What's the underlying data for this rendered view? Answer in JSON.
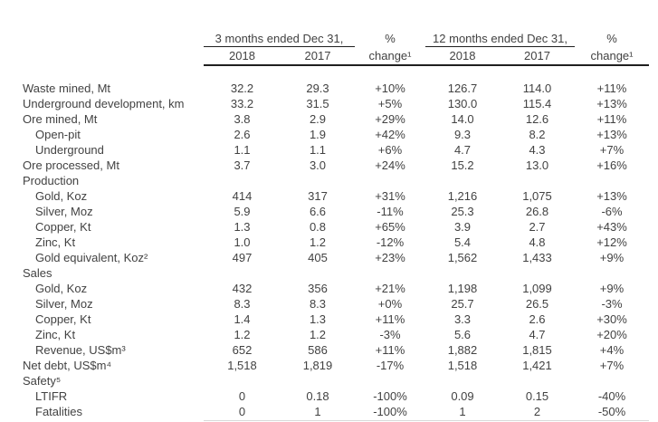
{
  "colors": {
    "text": "#424242",
    "rule_strong": "#1f1f1f",
    "rule_light": "#d9d9d9",
    "background": "#ffffff"
  },
  "table": {
    "header": {
      "group_3m": {
        "title": "3 months ended Dec 31,",
        "years": [
          "2018",
          "2017"
        ]
      },
      "group_12m": {
        "title": "12 months ended Dec 31,",
        "years": [
          "2018",
          "2017"
        ]
      },
      "pct_change": {
        "line1": "%",
        "line2": "change¹"
      }
    },
    "rows": [
      {
        "label": "Waste mined, Mt",
        "indent": false,
        "values": [
          "32.2",
          "29.3",
          "+10%",
          "126.7",
          "114.0",
          "+11%"
        ]
      },
      {
        "label": "Underground development, km",
        "indent": false,
        "values": [
          "33.2",
          "31.5",
          "+5%",
          "130.0",
          "115.4",
          "+13%"
        ]
      },
      {
        "label": "Ore mined, Mt",
        "indent": false,
        "values": [
          "3.8",
          "2.9",
          "+29%",
          "14.0",
          "12.6",
          "+11%"
        ]
      },
      {
        "label": "Open-pit",
        "indent": true,
        "values": [
          "2.6",
          "1.9",
          "+42%",
          "9.3",
          "8.2",
          "+13%"
        ]
      },
      {
        "label": "Underground",
        "indent": true,
        "values": [
          "1.1",
          "1.1",
          "+6%",
          "4.7",
          "4.3",
          "+7%"
        ]
      },
      {
        "label": "Ore processed, Mt",
        "indent": false,
        "values": [
          "3.7",
          "3.0",
          "+24%",
          "15.2",
          "13.0",
          "+16%"
        ]
      },
      {
        "label": "Production",
        "indent": false,
        "values": [
          "",
          "",
          "",
          "",
          "",
          ""
        ]
      },
      {
        "label": "Gold, Koz",
        "indent": true,
        "values": [
          "414",
          "317",
          "+31%",
          "1,216",
          "1,075",
          "+13%"
        ]
      },
      {
        "label": "Silver, Moz",
        "indent": true,
        "values": [
          "5.9",
          "6.6",
          "-11%",
          "25.3",
          "26.8",
          "-6%"
        ]
      },
      {
        "label": "Copper, Kt",
        "indent": true,
        "values": [
          "1.3",
          "0.8",
          "+65%",
          "3.9",
          "2.7",
          "+43%"
        ]
      },
      {
        "label": "Zinc, Kt",
        "indent": true,
        "values": [
          "1.0",
          "1.2",
          "-12%",
          "5.4",
          "4.8",
          "+12%"
        ]
      },
      {
        "label": "Gold equivalent, Koz²",
        "indent": true,
        "values": [
          "497",
          "405",
          "+23%",
          "1,562",
          "1,433",
          "+9%"
        ]
      },
      {
        "label": "Sales",
        "indent": false,
        "values": [
          "",
          "",
          "",
          "",
          "",
          ""
        ]
      },
      {
        "label": "Gold, Koz",
        "indent": true,
        "values": [
          "432",
          "356",
          "+21%",
          "1,198",
          "1,099",
          "+9%"
        ]
      },
      {
        "label": "Silver, Moz",
        "indent": true,
        "values": [
          "8.3",
          "8.3",
          "+0%",
          "25.7",
          "26.5",
          "-3%"
        ]
      },
      {
        "label": "Copper, Kt",
        "indent": true,
        "values": [
          "1.4",
          "1.3",
          "+11%",
          "3.3",
          "2.6",
          "+30%"
        ]
      },
      {
        "label": "Zinc, Kt",
        "indent": true,
        "values": [
          "1.2",
          "1.2",
          "-3%",
          "5.6",
          "4.7",
          "+20%"
        ]
      },
      {
        "label": "Revenue, US$m³",
        "indent": true,
        "values": [
          "652",
          "586",
          "+11%",
          "1,882",
          "1,815",
          "+4%"
        ]
      },
      {
        "label": "Net debt, US$m⁴",
        "indent": false,
        "values": [
          "1,518",
          "1,819",
          "-17%",
          "1,518",
          "1,421",
          "+7%"
        ]
      },
      {
        "label": "Safety⁵",
        "indent": false,
        "values": [
          "",
          "",
          "",
          "",
          "",
          ""
        ]
      },
      {
        "label": "LTIFR",
        "indent": true,
        "values": [
          "0",
          "0.18",
          "-100%",
          "0.09",
          "0.15",
          "-40%"
        ]
      },
      {
        "label": "Fatalities",
        "indent": true,
        "values": [
          "0",
          "1",
          "-100%",
          "1",
          "2",
          "-50%"
        ]
      }
    ]
  }
}
